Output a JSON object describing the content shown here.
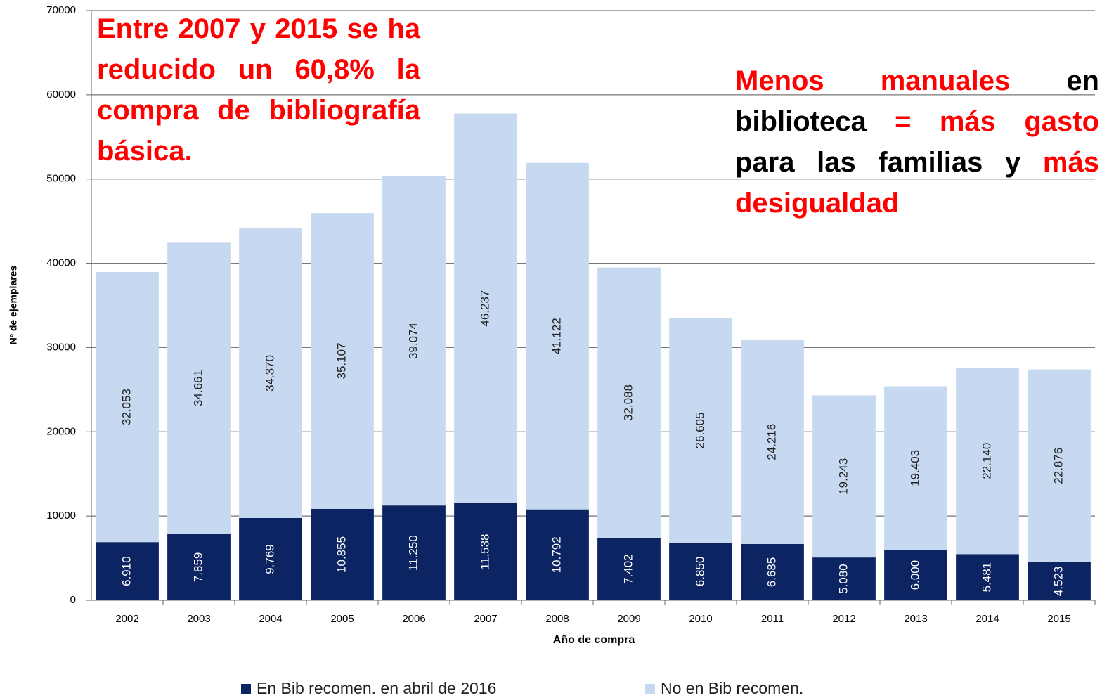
{
  "chart_data": {
    "type": "stacked_bar",
    "xlabel": "Año de compra",
    "ylabel": "Nº de ejemplares",
    "categories": [
      "2002",
      "2003",
      "2004",
      "2005",
      "2006",
      "2007",
      "2008",
      "2009",
      "2010",
      "2011",
      "2012",
      "2013",
      "2014",
      "2015"
    ],
    "series": [
      {
        "name": "En Bib recomen. en abril de 2016",
        "color": "#0c2461",
        "values": [
          6910,
          7859,
          9769,
          10855,
          11250,
          11538,
          10792,
          7402,
          6850,
          6685,
          5080,
          6000,
          5481,
          4523
        ],
        "value_labels": [
          "6.910",
          "7.859",
          "9.769",
          "10.855",
          "11.250",
          "11.538",
          "10.792",
          "7.402",
          "6.850",
          "6.685",
          "5.080",
          "6.000",
          "5.481",
          "4.523"
        ]
      },
      {
        "name": "No en Bib recomen.",
        "color": "#c6d9f0",
        "values": [
          32053,
          34661,
          34370,
          35107,
          39074,
          46237,
          41122,
          32088,
          26605,
          24216,
          19243,
          19403,
          22140,
          22876
        ],
        "value_labels": [
          "32.053",
          "34.661",
          "34.370",
          "35.107",
          "39.074",
          "46.237",
          "41.122",
          "32.088",
          "26.605",
          "24.216",
          "19.243",
          "19.403",
          "22.140",
          "22.876"
        ]
      }
    ],
    "ylim": [
      0,
      70000
    ],
    "yticks": [
      0,
      10000,
      20000,
      30000,
      40000,
      50000,
      60000,
      70000
    ],
    "grid": true,
    "legend": "bottom",
    "annotations": [
      {
        "segments": [
          {
            "text": "Entre 2007 y 2015 se ha reducido un 60,8% la compra de bibliografía básica.",
            "color": "#ff0000"
          }
        ]
      },
      {
        "segments": [
          {
            "text": "Menos manuales",
            "color": "#ff0000"
          },
          {
            "text": "en biblioteca",
            "color": "#000000"
          },
          {
            "text": "= más gasto",
            "color": "#ff0000"
          },
          {
            "text": "para las familias y",
            "color": "#000000"
          },
          {
            "text": "más desigualdad",
            "color": "#ff0000"
          }
        ]
      }
    ]
  }
}
